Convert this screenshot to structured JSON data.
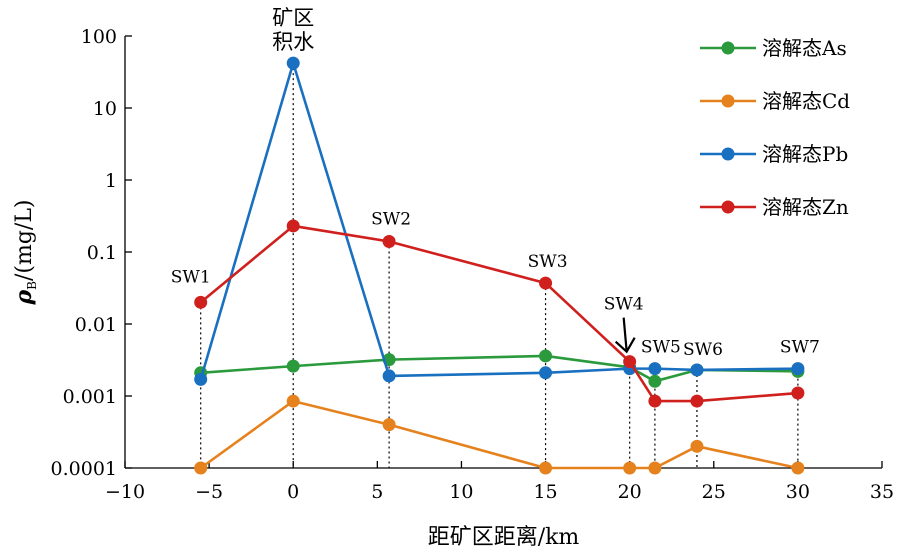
{
  "chart_data": {
    "type": "line",
    "title": "",
    "xlabel": "距矿区距离/km",
    "ylabel_main": "ρ",
    "ylabel_sub": "B",
    "ylabel_unit": "/(mg/L)",
    "xlim": [
      -10,
      35
    ],
    "ylim": [
      0.0001,
      100
    ],
    "yscale": "log",
    "x_ticks": [
      -10,
      -5,
      0,
      5,
      10,
      15,
      20,
      25,
      30,
      35
    ],
    "x_tick_labels": [
      "−10",
      "−5",
      "0",
      "5",
      "10",
      "15",
      "20",
      "25",
      "30",
      "35"
    ],
    "y_ticks": [
      0.0001,
      0.001,
      0.01,
      0.1,
      1,
      10,
      100
    ],
    "y_tick_labels": [
      "0.0001",
      "0.001",
      "0.01",
      "0.1",
      "1",
      "10",
      "100"
    ],
    "grid": false,
    "legend_position": "top-right",
    "x": [
      -5.5,
      0,
      5.7,
      15,
      20,
      21.5,
      24,
      30
    ],
    "series": [
      {
        "name": "溶解态As",
        "color": "#2a9a3c",
        "values": [
          0.0021,
          0.0026,
          0.0032,
          0.0036,
          0.0025,
          0.0016,
          0.0023,
          0.0022
        ]
      },
      {
        "name": "溶解态Cd",
        "color": "#e5821e",
        "values": [
          0.0001,
          0.00085,
          0.0004,
          0.0001,
          0.0001,
          0.0001,
          0.0002,
          0.0001
        ]
      },
      {
        "name": "溶解态Pb",
        "color": "#1a70c0",
        "values": [
          0.0017,
          42,
          0.0019,
          0.0021,
          0.0024,
          0.0024,
          0.0023,
          0.0024
        ]
      },
      {
        "name": "溶解态Zn",
        "color": "#d0201e",
        "values": [
          0.02,
          0.23,
          0.14,
          0.037,
          0.003,
          0.00085,
          0.00085,
          0.0011
        ]
      }
    ],
    "dotted_drops": [
      {
        "x": -5.5,
        "y": 0.02
      },
      {
        "x": 0,
        "y": 42
      },
      {
        "x": 5.7,
        "y": 0.14
      },
      {
        "x": 15,
        "y": 0.037
      },
      {
        "x": 20,
        "y": 0.003
      },
      {
        "x": 21.5,
        "y": 0.0024
      },
      {
        "x": 24,
        "y": 0.0023
      },
      {
        "x": 30,
        "y": 0.0024
      }
    ],
    "annotations": [
      {
        "text": "SW1",
        "x": -5.5,
        "y": 0.02
      },
      {
        "text": "矿区",
        "x": 0,
        "y": 42
      },
      {
        "text": "积水",
        "x": 0,
        "y": 42
      },
      {
        "text": "SW2",
        "x": 5.7,
        "y": 0.14
      },
      {
        "text": "SW3",
        "x": 15,
        "y": 0.037
      },
      {
        "text": "SW4",
        "x": 20,
        "y": 0.003
      },
      {
        "text": "SW5",
        "x": 21.5,
        "y": 0.0024
      },
      {
        "text": "SW6",
        "x": 24,
        "y": 0.0023
      },
      {
        "text": "SW7",
        "x": 30,
        "y": 0.0024
      }
    ]
  }
}
